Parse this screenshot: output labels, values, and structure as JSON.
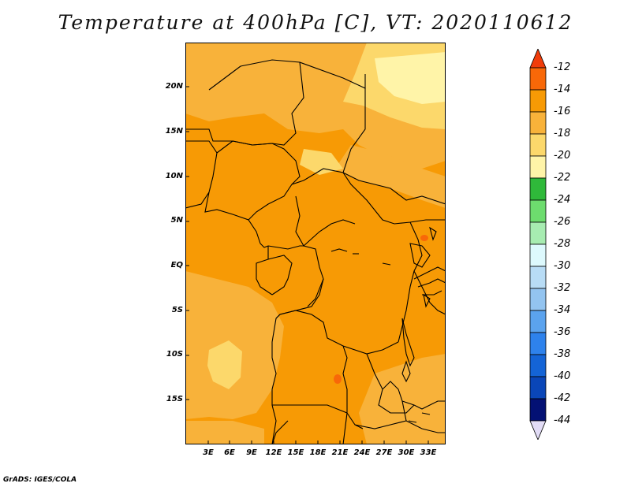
{
  "title": "Temperature at 400hPa [C], VT: 2020110612",
  "footer": "GrADS: IGES/COLA",
  "map": {
    "lat_labels": [
      "20N",
      "15N",
      "10N",
      "5N",
      "EQ",
      "5S",
      "10S",
      "15S"
    ],
    "lon_labels": [
      "3E",
      "6E",
      "9E",
      "12E",
      "15E",
      "18E",
      "21E",
      "24E",
      "27E",
      "30E",
      "33E"
    ]
  },
  "colorbar": {
    "labels": [
      "-12",
      "-14",
      "-16",
      "-18",
      "-20",
      "-22",
      "-24",
      "-26",
      "-28",
      "-30",
      "-32",
      "-34",
      "-36",
      "-38",
      "-40",
      "-42",
      "-44"
    ],
    "colors": [
      "#f03c0a",
      "#f86808",
      "#f79a05",
      "#f8b23a",
      "#fcd86b",
      "#fff4a8",
      "#2fb93a",
      "#6ddc6e",
      "#a7ecb1",
      "#ddf9fd",
      "#b8dcf5",
      "#93c4f0",
      "#5ba3ee",
      "#2e82ec",
      "#1464d6",
      "#0a46b8",
      "#031174",
      "#e2dcf6"
    ]
  },
  "colors": {
    "land_base": "#f79a05",
    "light_orange": "#f8b23a",
    "pale_yellow": "#fcd86b",
    "pale_cream": "#fff4a8",
    "warm_spot": "#f86808",
    "border": "#000000"
  }
}
